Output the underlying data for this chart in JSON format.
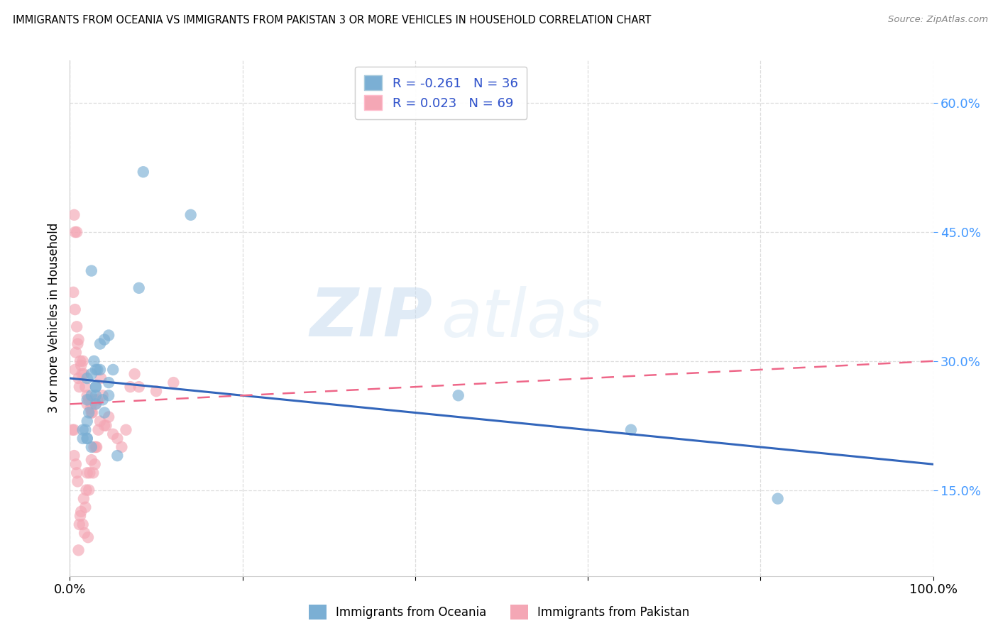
{
  "title": "IMMIGRANTS FROM OCEANIA VS IMMIGRANTS FROM PAKISTAN 3 OR MORE VEHICLES IN HOUSEHOLD CORRELATION CHART",
  "source": "Source: ZipAtlas.com",
  "ylabel": "3 or more Vehicles in Household",
  "legend_label_1": "Immigrants from Oceania",
  "legend_label_2": "Immigrants from Pakistan",
  "r1": -0.261,
  "n1": 36,
  "r2": 0.023,
  "n2": 69,
  "color1": "#7BAFD4",
  "color2": "#F4A7B5",
  "trendline1_color": "#3366BB",
  "trendline2_color": "#EE6688",
  "xlim": [
    0.0,
    100.0
  ],
  "ylim": [
    5.0,
    65.0
  ],
  "ytick_vals": [
    15.0,
    30.0,
    45.0,
    60.0
  ],
  "xtick_vals": [
    0.0,
    20.0,
    40.0,
    60.0,
    80.0,
    100.0
  ],
  "watermark_zip": "ZIP",
  "watermark_atlas": "atlas",
  "oceania_x": [
    1.5,
    2.0,
    2.0,
    2.0,
    2.2,
    2.5,
    2.5,
    2.5,
    2.8,
    3.0,
    3.0,
    3.0,
    3.2,
    3.5,
    3.5,
    3.8,
    4.0,
    4.0,
    4.5,
    4.5,
    4.5,
    5.0,
    5.5,
    8.0,
    8.5,
    14.0,
    1.5,
    1.8,
    2.0,
    2.0,
    3.0,
    3.0,
    45.0,
    65.0,
    82.0,
    2.5
  ],
  "oceania_y": [
    22.0,
    21.0,
    23.0,
    28.0,
    24.0,
    20.0,
    26.0,
    28.5,
    30.0,
    25.0,
    27.0,
    27.0,
    29.0,
    29.0,
    32.0,
    25.5,
    24.0,
    32.5,
    26.0,
    27.5,
    33.0,
    29.0,
    19.0,
    38.5,
    52.0,
    47.0,
    21.0,
    22.0,
    21.0,
    25.5,
    26.0,
    29.0,
    26.0,
    22.0,
    14.0,
    40.5
  ],
  "pakistan_x": [
    0.3,
    0.4,
    0.5,
    0.5,
    0.5,
    0.6,
    0.6,
    0.6,
    0.7,
    0.7,
    0.8,
    0.8,
    0.8,
    0.9,
    0.9,
    1.0,
    1.0,
    1.0,
    1.1,
    1.1,
    1.2,
    1.2,
    1.3,
    1.3,
    1.4,
    1.5,
    1.5,
    1.6,
    1.6,
    1.7,
    1.8,
    1.8,
    1.9,
    2.0,
    2.0,
    2.0,
    2.1,
    2.2,
    2.2,
    2.3,
    2.4,
    2.5,
    2.5,
    2.5,
    2.6,
    2.7,
    2.8,
    2.8,
    2.9,
    3.0,
    3.0,
    3.1,
    3.2,
    3.3,
    3.5,
    3.6,
    3.8,
    4.0,
    4.2,
    4.5,
    5.0,
    5.5,
    6.0,
    6.5,
    7.0,
    7.5,
    8.0,
    10.0,
    12.0
  ],
  "pakistan_y": [
    22.0,
    38.0,
    19.0,
    22.0,
    47.0,
    29.0,
    36.0,
    45.0,
    18.0,
    31.0,
    17.0,
    34.0,
    45.0,
    16.0,
    32.0,
    8.0,
    32.5,
    28.0,
    11.0,
    27.0,
    12.0,
    30.0,
    12.5,
    29.5,
    28.5,
    11.0,
    30.0,
    14.0,
    28.5,
    10.0,
    13.0,
    27.0,
    15.0,
    17.0,
    26.0,
    25.0,
    9.5,
    15.0,
    25.5,
    17.0,
    24.5,
    18.5,
    24.0,
    25.0,
    24.0,
    17.0,
    20.0,
    25.5,
    18.0,
    20.0,
    25.0,
    20.0,
    25.5,
    22.0,
    23.0,
    28.0,
    26.0,
    22.5,
    22.5,
    23.5,
    21.5,
    21.0,
    20.0,
    22.0,
    27.0,
    28.5,
    27.0,
    26.5,
    27.5
  ]
}
